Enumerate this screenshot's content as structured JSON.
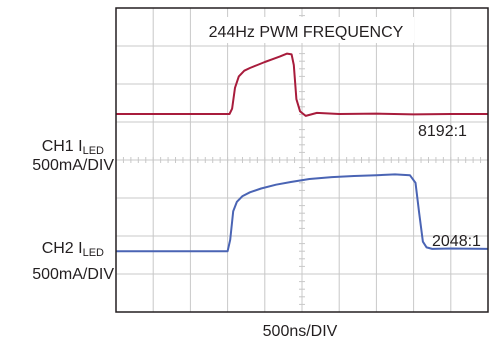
{
  "chart_data": {
    "type": "line",
    "title": "244Hz PWM FREQUENCY",
    "xlabel": "500ns/DIV",
    "grid": true,
    "divisions": {
      "x": 10,
      "y": 8
    },
    "xlim": [
      0,
      10
    ],
    "ylim": [
      0,
      8
    ],
    "colors": {
      "ch1": "#a81c3c",
      "ch2": "#4a64b4",
      "grid": "#c8c8c8",
      "frame": "#231f20"
    },
    "series": [
      {
        "name": "CH1",
        "label_main": "CH1 I",
        "label_sub": "LED",
        "scale": "500mA/DIV",
        "ratio": "8192:1",
        "x": [
          0,
          3.05,
          3.12,
          3.2,
          3.3,
          3.45,
          3.6,
          3.8,
          4.0,
          4.2,
          4.4,
          4.6,
          4.72,
          4.78,
          4.85,
          4.95,
          5.1,
          5.4,
          6,
          7,
          8,
          9,
          10
        ],
        "y": [
          5.21,
          5.21,
          5.35,
          5.9,
          6.2,
          6.35,
          6.42,
          6.5,
          6.58,
          6.65,
          6.72,
          6.8,
          6.78,
          6.5,
          5.6,
          5.28,
          5.16,
          5.24,
          5.21,
          5.22,
          5.2,
          5.21,
          5.21
        ]
      },
      {
        "name": "CH2",
        "label_main": "CH2 I",
        "label_sub": "LED",
        "scale": "500mA/DIV",
        "ratio": "2048:1",
        "x": [
          0,
          3.0,
          3.07,
          3.15,
          3.25,
          3.4,
          3.6,
          3.9,
          4.3,
          4.7,
          5.2,
          5.8,
          6.4,
          7.0,
          7.5,
          7.9,
          8.05,
          8.15,
          8.25,
          8.35,
          8.5,
          9,
          10
        ],
        "y": [
          1.6,
          1.6,
          1.9,
          2.65,
          2.9,
          3.05,
          3.15,
          3.25,
          3.35,
          3.42,
          3.5,
          3.55,
          3.58,
          3.6,
          3.62,
          3.6,
          3.4,
          2.6,
          1.85,
          1.7,
          1.66,
          1.67,
          1.66
        ]
      }
    ]
  }
}
